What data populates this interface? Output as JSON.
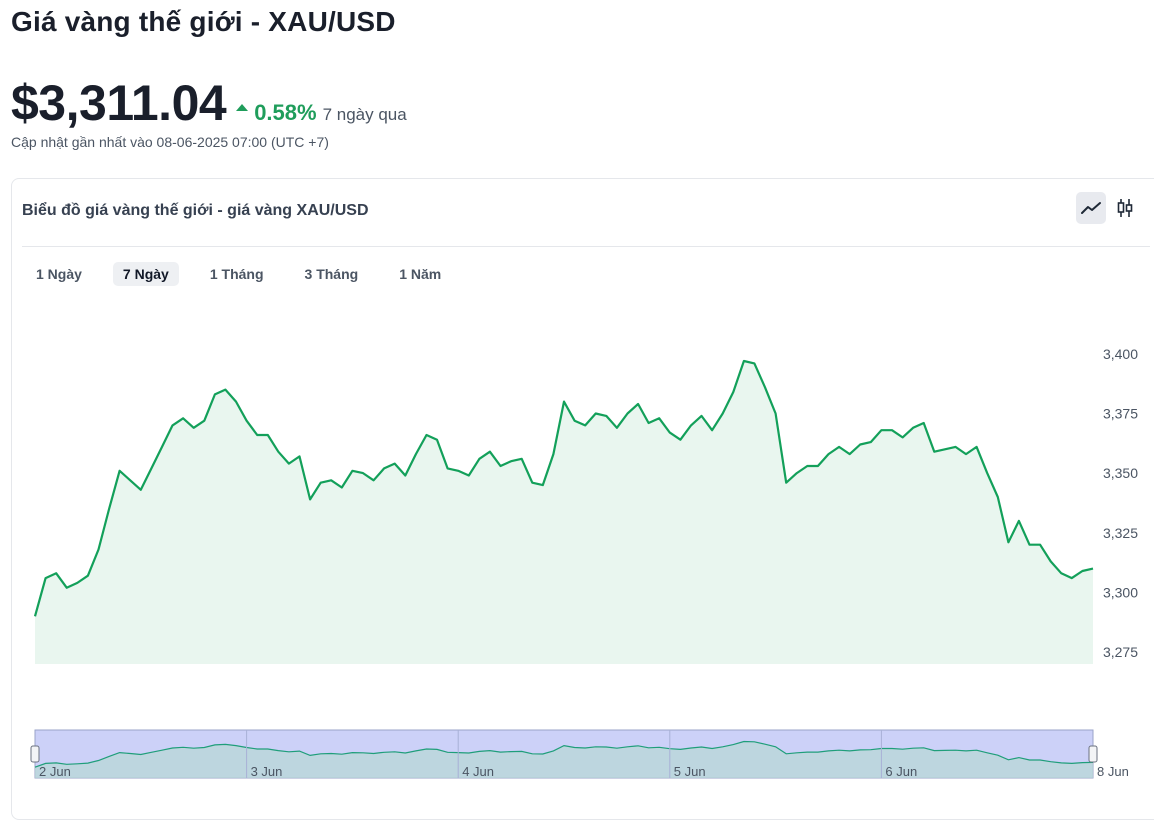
{
  "page": {
    "title": "Giá vàng thế giới - XAU/USD",
    "price": "$3,311.04",
    "change_pct": "0.58%",
    "change_period": "7 ngày qua",
    "updated": "Cập nhật gần nhất vào 08-06-2025 07:00 (UTC +7)"
  },
  "card": {
    "title": "Biểu đồ giá vàng thế giới - giá vàng XAU/USD",
    "range_tabs": [
      {
        "label": "1 Ngày",
        "active": false
      },
      {
        "label": "7 Ngày",
        "active": true
      },
      {
        "label": "1 Tháng",
        "active": false
      },
      {
        "label": "3 Tháng",
        "active": false
      },
      {
        "label": "1 Năm",
        "active": false
      }
    ],
    "chart_toggle": [
      "line-chart-icon",
      "candlestick-icon"
    ]
  },
  "colors": {
    "line": "#13a05a",
    "fill": "#e9f6ef",
    "accent_up": "#1f9d5b",
    "navigator_bg": "#ccd1f8"
  },
  "chart_data": {
    "type": "area",
    "title": "",
    "xlabel": "",
    "ylabel": "",
    "ylim": [
      3275,
      3400
    ],
    "yticks": [
      3275,
      3300,
      3325,
      3350,
      3375,
      3400
    ],
    "ytick_labels": [
      "3,275",
      "3,300",
      "3,325",
      "3,350",
      "3,375",
      "3,400"
    ],
    "grid": false,
    "navigator": true,
    "navigator_labels": [
      "2 Jun",
      "3 Jun",
      "4 Jun",
      "5 Jun",
      "6 Jun",
      "8 Jun"
    ],
    "navigator_positions": [
      0.0,
      1.0,
      2.0,
      3.0,
      4.0,
      5.0
    ],
    "series": [
      {
        "x": [
          0,
          0.05,
          0.1,
          0.15,
          0.2,
          0.25,
          0.3,
          0.35,
          0.4,
          0.45,
          0.5,
          0.55,
          0.6,
          0.65,
          0.7,
          0.75,
          0.8,
          0.85,
          0.9,
          0.95,
          1.0,
          1.05,
          1.1,
          1.15,
          1.2,
          1.25,
          1.3,
          1.35,
          1.4,
          1.45,
          1.5,
          1.55,
          1.6,
          1.65,
          1.7,
          1.75,
          1.8,
          1.85,
          1.9,
          1.95,
          2.0,
          2.05,
          2.1,
          2.15,
          2.2,
          2.25,
          2.3,
          2.35,
          2.4,
          2.45,
          2.5,
          2.55,
          2.6,
          2.65,
          2.7,
          2.75,
          2.8,
          2.85,
          2.9,
          2.95,
          3.0,
          3.05,
          3.1,
          3.15,
          3.2,
          3.25,
          3.3,
          3.35,
          3.4,
          3.45,
          3.5,
          3.55,
          3.6,
          3.65,
          3.7,
          3.75,
          3.8,
          3.85,
          3.9,
          3.95,
          4.0,
          4.05,
          4.1,
          4.15,
          4.2,
          4.25,
          4.3,
          4.35,
          4.4,
          4.45,
          4.5,
          4.55,
          4.6,
          4.65,
          4.7,
          4.75,
          4.8,
          4.85,
          4.9,
          4.95,
          5.0
        ],
        "values": [
          3290,
          3306,
          3308,
          3302,
          3304,
          3307,
          3318,
          3335,
          3351,
          3347,
          3343,
          3352,
          3361,
          3370,
          3373,
          3369,
          3372,
          3383,
          3385,
          3380,
          3372,
          3366,
          3366,
          3359,
          3354,
          3357,
          3339,
          3346,
          3347,
          3344,
          3351,
          3350,
          3347,
          3352,
          3354,
          3349,
          3358,
          3366,
          3364,
          3352,
          3351,
          3349,
          3356,
          3359,
          3353,
          3355,
          3356,
          3346,
          3345,
          3358,
          3380,
          3372,
          3370,
          3375,
          3374,
          3369,
          3375,
          3379,
          3371,
          3373,
          3367,
          3364,
          3370,
          3374,
          3368,
          3375,
          3384,
          3397,
          3396,
          3386,
          3375,
          3346,
          3350,
          3353,
          3353,
          3358,
          3361,
          3358,
          3362,
          3363,
          3368,
          3368,
          3365,
          3369,
          3371,
          3359,
          3360,
          3361,
          3358,
          3361,
          3350,
          3340,
          3321,
          3330,
          3320,
          3320,
          3313,
          3308,
          3306,
          3309,
          3310
        ]
      }
    ]
  }
}
